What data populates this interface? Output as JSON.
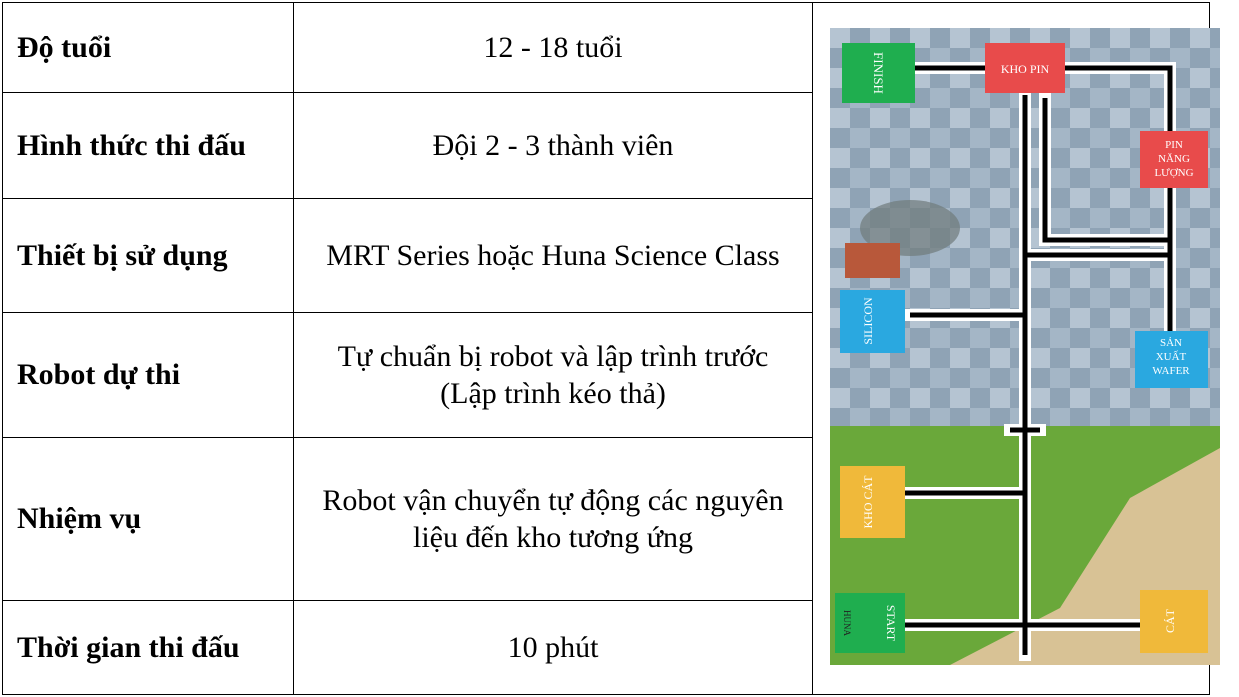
{
  "table": {
    "rows": [
      [
        "Độ tuổi",
        "12 - 18 tuổi"
      ],
      [
        "Hình thức thi đấu",
        "Đội 2 - 3 thành viên"
      ],
      [
        "Thiết bị sử dụng",
        "MRT Series hoặc Huna Science Class"
      ],
      [
        "Robot dự thi",
        "Tự chuẩn bị robot và lập trình trước (Lập trình kéo thả)"
      ],
      [
        "Nhiệm vụ",
        "Robot vận chuyển tự động các nguyên liệu đến kho tương ứng"
      ],
      [
        "Thời gian thi đấu",
        "10 phút"
      ]
    ]
  },
  "map": {
    "finish": "FINISH",
    "kho_pin": "KHO PIN",
    "pin_nang_luong": [
      "PIN",
      "NĂNG",
      "LƯỢNG"
    ],
    "silicon": "SILICON",
    "san_xuat_wafer": [
      "SẢN",
      "XUẤT",
      "WAFER"
    ],
    "kho_cat": "KHO CÁT",
    "start": "START",
    "cat": "CÁT",
    "logo": "HUNA"
  }
}
